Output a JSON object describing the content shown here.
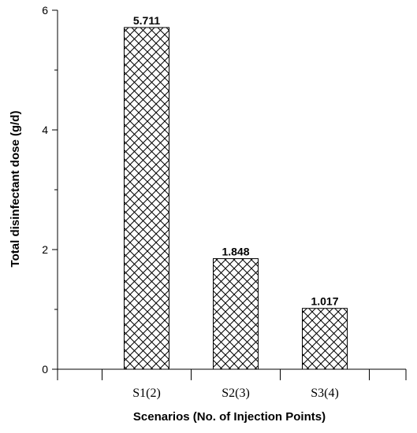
{
  "chart_data": {
    "type": "bar",
    "categories": [
      "S1(2)",
      "S2(3)",
      "S3(4)"
    ],
    "values": [
      5.711,
      1.848,
      1.017
    ],
    "data_labels": [
      "5.711",
      "1.848",
      "1.017"
    ],
    "title": "",
    "xlabel": "Scenarios (No. of Injection Points)",
    "ylabel": "Total disinfectant dose (g/d)",
    "ylim": [
      0,
      6
    ],
    "yticks": [
      0,
      2,
      4,
      6
    ],
    "grid": false,
    "bar_fill": "crosshatch",
    "bar_color": "#000000"
  }
}
